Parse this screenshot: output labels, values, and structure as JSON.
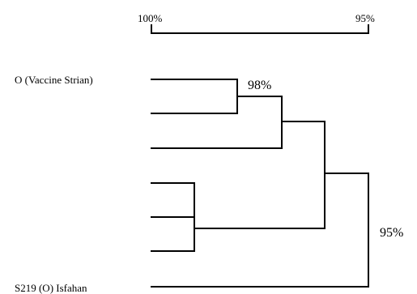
{
  "scale": {
    "left_label": "100%",
    "right_label": "95%"
  },
  "leaves": {
    "top_label": "O (Vaccine Strian)",
    "bottom_label": "S219 (O) Isfahan"
  },
  "nodes": {
    "inner_label": "98%",
    "root_label": "95%"
  },
  "colors": {
    "line": "#000000",
    "background": "#ffffff"
  }
}
